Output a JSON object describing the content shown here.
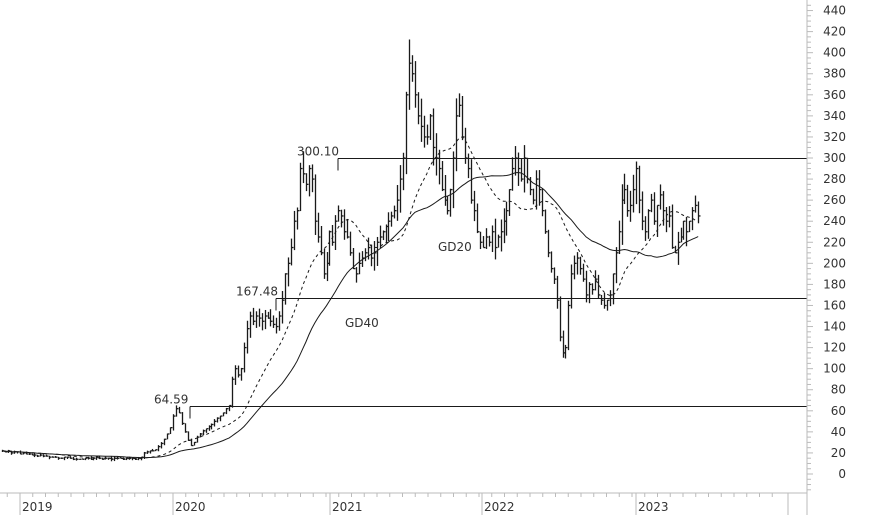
{
  "chart_data": {
    "type": "ohlc_bar",
    "title": "",
    "xlabel": "",
    "ylabel": "",
    "ylim": [
      -20,
      445
    ],
    "yticks": [
      0,
      20,
      40,
      60,
      80,
      100,
      120,
      140,
      160,
      180,
      200,
      220,
      240,
      260,
      280,
      300,
      320,
      340,
      360,
      380,
      400,
      420,
      440
    ],
    "xtick_labels": [
      "2019",
      "2020",
      "2021",
      "2022",
      "2023"
    ],
    "grid": false,
    "legend": "none",
    "horizontal_levels": [
      {
        "value": 300.1,
        "label": "300.10"
      },
      {
        "value": 167.48,
        "label": "167.48"
      },
      {
        "value": 64.59,
        "label": "64.59"
      }
    ],
    "moving_averages": [
      {
        "name": "GD20",
        "style": "dashed"
      },
      {
        "name": "GD40",
        "style": "solid"
      }
    ],
    "series_close_weekly": [
      22,
      21,
      22,
      20,
      21,
      21,
      19,
      20,
      19,
      19,
      18,
      18,
      17,
      18,
      17,
      17,
      16,
      16,
      16,
      15,
      15,
      16,
      16,
      15,
      14,
      14,
      14,
      14,
      15,
      15,
      14,
      15,
      16,
      15,
      14,
      15,
      15,
      14,
      15,
      15,
      15,
      14,
      15,
      15,
      15,
      14,
      15,
      16,
      20,
      21,
      22,
      22,
      23,
      26,
      29,
      33,
      38,
      44,
      55,
      62,
      58,
      48,
      40,
      32,
      27,
      30,
      35,
      38,
      41,
      43,
      45,
      47,
      50,
      53,
      55,
      58,
      62,
      65,
      90,
      100,
      94,
      100,
      120,
      138,
      150,
      145,
      150,
      148,
      145,
      150,
      148,
      145,
      142,
      140,
      150,
      165,
      190,
      200,
      215,
      240,
      250,
      290,
      285,
      275,
      290,
      280,
      240,
      225,
      210,
      190,
      200,
      230,
      220,
      240,
      250,
      245,
      230,
      225,
      210,
      195,
      190,
      200,
      205,
      210,
      215,
      205,
      210,
      220,
      225,
      230,
      235,
      240,
      245,
      250,
      260,
      280,
      300,
      360,
      390,
      380,
      360,
      340,
      330,
      320,
      320,
      340,
      310,
      300,
      290,
      270,
      260,
      250,
      270,
      300,
      340,
      350,
      320,
      300,
      290,
      260,
      250,
      230,
      220,
      215,
      225,
      220,
      230,
      215,
      225,
      230,
      240,
      250,
      270,
      290,
      300,
      290,
      280,
      300,
      280,
      270,
      260,
      280,
      270,
      250,
      230,
      210,
      195,
      185,
      165,
      130,
      115,
      120,
      160,
      190,
      200,
      205,
      195,
      185,
      170,
      180,
      175,
      185,
      170,
      165,
      160,
      165,
      170,
      190,
      210,
      230,
      260,
      270,
      250,
      255,
      270,
      290,
      260,
      240,
      230,
      250,
      260,
      240,
      255,
      265,
      250,
      240,
      245,
      215,
      210,
      220,
      225,
      240,
      230,
      240,
      250,
      255,
      245
    ],
    "ma_GD20_approx": "computed from series_close_weekly (20-period SMA)",
    "ma_GD40_approx": "computed from series_close_weekly (40-period SMA)"
  },
  "labels": {
    "gd20": "GD20",
    "gd40": "GD40"
  },
  "colors": {
    "bars": "#1a1a1a",
    "axis": "#bbbbbb",
    "text": "#333333",
    "levels": "#1a1a1a"
  }
}
